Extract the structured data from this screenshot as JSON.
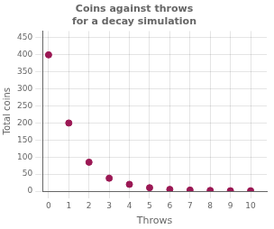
{
  "chart_data": {
    "type": "scatter",
    "title": "Coins against throws\nfor a decay simulation",
    "x": [
      0,
      1,
      2,
      3,
      4,
      5,
      6,
      7,
      8,
      9,
      10
    ],
    "values": [
      400,
      200,
      85,
      38,
      20,
      10,
      5,
      3,
      2,
      1,
      1
    ],
    "color": "#9b1854",
    "xlabel": "Throws",
    "ylabel": "Total coins",
    "xlim": [
      -0.3,
      10.8
    ],
    "ylim": [
      0,
      470
    ],
    "xticks": [
      0,
      1,
      2,
      3,
      4,
      5,
      6,
      7,
      8,
      9,
      10
    ],
    "yticks": [
      0,
      50,
      100,
      150,
      200,
      250,
      300,
      350,
      400,
      450
    ],
    "grid": true
  }
}
